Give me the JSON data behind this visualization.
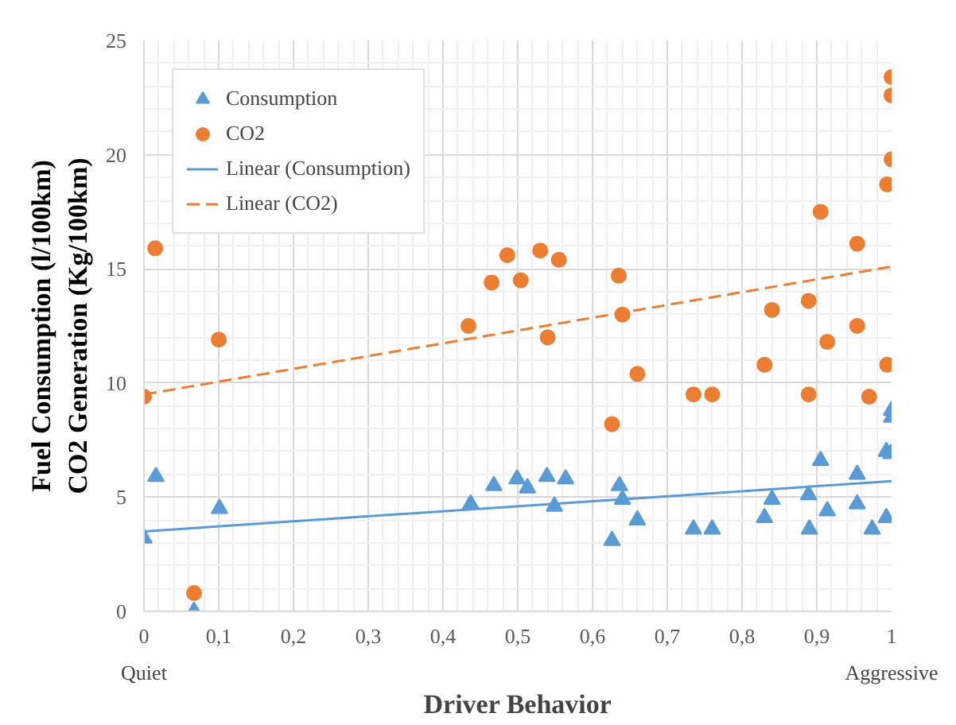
{
  "chart_data": {
    "type": "scatter",
    "xlabel": "Driver Behavior",
    "ylabel": "Fuel Consumption (l/100km)\nCO2 Generation (Kg/100km)",
    "xlim": [
      0,
      1
    ],
    "ylim": [
      0,
      25
    ],
    "xticks": [
      0,
      {
        "value": 0.1,
        "label": "0,1"
      },
      {
        "value": 0.2,
        "label": "0,2"
      },
      {
        "value": 0.3,
        "label": "0,3"
      },
      {
        "value": 0.4,
        "label": "0,4"
      },
      {
        "value": 0.5,
        "label": "0,5"
      },
      {
        "value": 0.6,
        "label": "0,6"
      },
      {
        "value": 0.7,
        "label": "0,7"
      },
      {
        "value": 0.8,
        "label": "0,8"
      },
      {
        "value": 0.9,
        "label": "0,9"
      },
      1
    ],
    "yticks": [
      0,
      5,
      10,
      15,
      20,
      25
    ],
    "grid": true,
    "legend": "top left",
    "annotations": [
      "Quiet",
      "Aggressive"
    ],
    "series": [
      {
        "name": "Consumption",
        "marker": "triangle",
        "color": "#5b9bd5",
        "x": [
          0,
          0.016,
          0.067,
          0.101,
          0.437,
          0.468,
          0.499,
          0.513,
          0.539,
          0.549,
          0.564,
          0.626,
          0.636,
          0.64,
          0.66,
          0.735,
          0.76,
          0.83,
          0.84,
          0.889,
          0.89,
          0.905,
          0.914,
          0.954,
          0.954,
          0.974,
          0.993,
          0.993,
          0.999,
          1.0,
          1.0
        ],
        "values": [
          3.2,
          5.9,
          0,
          4.5,
          4.7,
          5.5,
          5.8,
          5.4,
          5.9,
          4.6,
          5.8,
          3.1,
          5.5,
          4.9,
          4.0,
          3.6,
          3.6,
          4.1,
          4.9,
          5.1,
          3.6,
          6.6,
          4.4,
          6.0,
          4.7,
          3.6,
          4.1,
          7.0,
          6.9,
          8.8,
          8.5
        ]
      },
      {
        "name": "CO2",
        "marker": "circle",
        "color": "#ed7d31",
        "x": [
          0,
          0.015,
          0.067,
          0.1,
          0.434,
          0.465,
          0.486,
          0.504,
          0.53,
          0.54,
          0.555,
          0.626,
          0.635,
          0.64,
          0.66,
          0.735,
          0.76,
          0.83,
          0.84,
          0.889,
          0.889,
          0.905,
          0.914,
          0.954,
          0.954,
          0.97,
          0.994,
          0.994,
          1.0,
          1.0,
          1.0
        ],
        "values": [
          9.4,
          15.9,
          0.8,
          11.9,
          12.5,
          14.4,
          15.6,
          14.5,
          15.8,
          12.0,
          15.4,
          8.2,
          14.7,
          13.0,
          10.4,
          9.5,
          9.5,
          10.8,
          13.2,
          13.6,
          9.5,
          17.5,
          11.8,
          16.1,
          12.5,
          9.4,
          10.8,
          18.7,
          19.8,
          22.6,
          23.4
        ]
      },
      {
        "name": "Linear (Consumption)",
        "type": "line",
        "line_style": "solid",
        "color": "#5b9bd5",
        "x": [
          0,
          1
        ],
        "values": [
          3.5,
          5.7
        ]
      },
      {
        "name": "Linear (CO2)",
        "type": "line",
        "line_style": "dashed",
        "color": "#ed7d31",
        "x": [
          0,
          1
        ],
        "values": [
          9.5,
          15.1
        ]
      }
    ]
  }
}
